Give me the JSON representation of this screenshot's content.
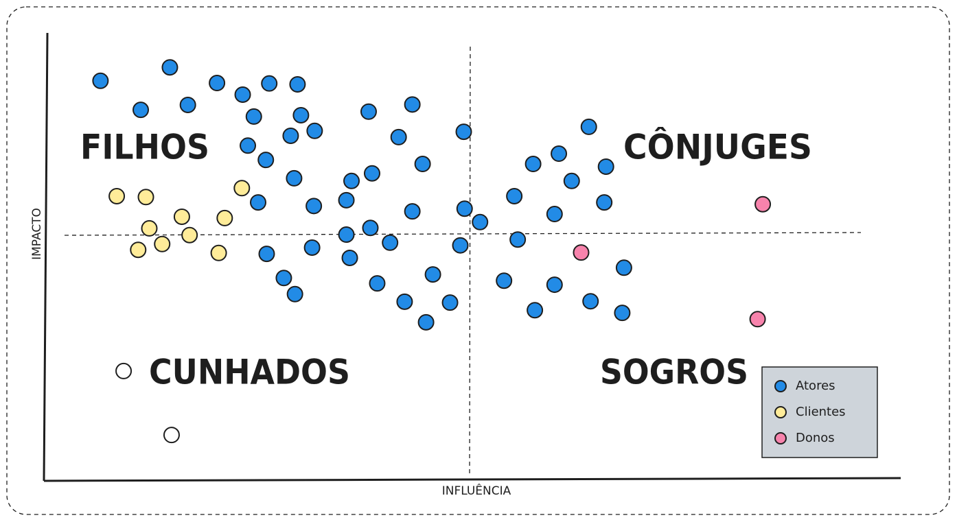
{
  "chart_data": {
    "type": "scatter",
    "xlabel": "INFLUÊNCIA",
    "ylabel": "IMPACTO",
    "quadrant_labels": [
      "FILHOS",
      "CÔNJUGES",
      "CUNHADOS",
      "SOGROS"
    ],
    "xlim": [
      0,
      100
    ],
    "ylim": [
      0,
      100
    ],
    "series": [
      {
        "name": "Atores",
        "color": "#228be6",
        "x": [
          6.6,
          14.7,
          11.3,
          16.8,
          20.2,
          23.2,
          26.3,
          29.6,
          24.5,
          30.0,
          31.6,
          28.8,
          23.8,
          25.9,
          29.2,
          25.0,
          31.5,
          37.9,
          43.0,
          41.4,
          44.2,
          49.0,
          38.3,
          35.9,
          35.3,
          43.0,
          49.1,
          50.9,
          38.1,
          35.3,
          40.4,
          48.6,
          26.0,
          31.3,
          35.7,
          28.0,
          29.3,
          38.9,
          45.4,
          42.1,
          47.4,
          44.6,
          63.6,
          60.1,
          57.1,
          65.6,
          61.6,
          54.9,
          65.4,
          59.6,
          55.3,
          67.7,
          53.7,
          59.6,
          63.8,
          57.3,
          67.5
        ],
        "y": [
          89.3,
          92.3,
          82.8,
          83.9,
          88.8,
          86.2,
          88.7,
          88.5,
          81.3,
          81.6,
          78.1,
          77.0,
          74.8,
          71.6,
          67.5,
          62.1,
          61.3,
          82.4,
          84.0,
          76.7,
          70.7,
          77.9,
          68.6,
          66.9,
          62.6,
          60.1,
          60.7,
          57.7,
          56.4,
          54.9,
          53.1,
          52.5,
          50.6,
          52.0,
          49.7,
          45.2,
          41.6,
          44.0,
          46.0,
          39.9,
          39.7,
          35.3,
          79.0,
          73.0,
          70.7,
          70.1,
          66.9,
          63.5,
          62.1,
          59.5,
          53.8,
          47.5,
          44.6,
          43.7,
          40.0,
          38.0,
          37.4
        ]
      },
      {
        "name": "Clientes",
        "color": "#ffec99",
        "x": [
          8.5,
          11.9,
          23.1,
          16.1,
          21.1,
          12.3,
          17.0,
          11.0,
          13.8,
          20.4
        ],
        "y": [
          63.5,
          63.3,
          65.3,
          58.9,
          58.6,
          56.3,
          54.8,
          51.5,
          52.8,
          50.8
        ]
      },
      {
        "name": "Donos",
        "color": "#f783ac",
        "x": [
          83.9,
          62.7,
          83.3
        ],
        "y": [
          61.7,
          50.9,
          36.0
        ]
      },
      {
        "color": "#ffffff",
        "x": [
          9.3,
          14.9
        ],
        "y": [
          24.4,
          10.1
        ]
      }
    ]
  }
}
